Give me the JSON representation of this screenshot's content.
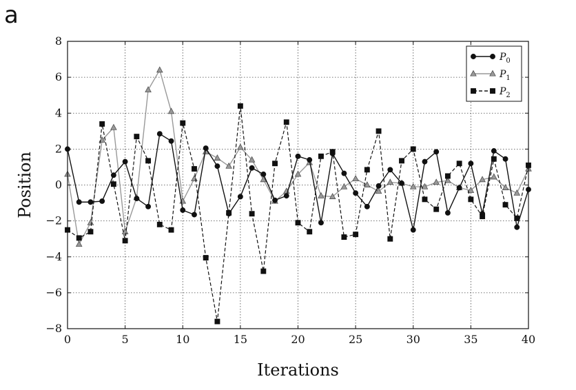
{
  "panel_label": "a",
  "chart_data": {
    "type": "line",
    "xlabel": "Iterations",
    "ylabel": "Position",
    "xlim": [
      0,
      40
    ],
    "ylim": [
      -8,
      8
    ],
    "xticks": [
      0,
      5,
      10,
      15,
      20,
      25,
      30,
      35,
      40
    ],
    "yticks": [
      -8,
      -6,
      -4,
      -2,
      0,
      2,
      4,
      6,
      8
    ],
    "ytick_labels": [
      "−8",
      "−6",
      "−4",
      "−2",
      "0",
      "2",
      "4",
      "6",
      "8"
    ],
    "grid": true,
    "legend_position": "top-right",
    "x": [
      0,
      1,
      2,
      3,
      4,
      5,
      6,
      7,
      8,
      9,
      10,
      11,
      12,
      13,
      14,
      15,
      16,
      17,
      18,
      19,
      20,
      21,
      22,
      23,
      24,
      25,
      26,
      27,
      28,
      29,
      30,
      31,
      32,
      33,
      34,
      35,
      36,
      37,
      38,
      39,
      40
    ],
    "series": [
      {
        "name": "P0",
        "name_base": "P",
        "name_sub": "0",
        "style": "solid",
        "marker": "circle",
        "color": "#111111",
        "values": [
          2.0,
          -0.95,
          -0.95,
          -0.9,
          0.55,
          1.3,
          -0.75,
          -1.2,
          2.85,
          2.45,
          -1.4,
          -1.65,
          2.05,
          1.05,
          -1.6,
          -0.65,
          0.95,
          0.6,
          -0.85,
          -0.6,
          1.6,
          1.4,
          -2.1,
          1.75,
          0.65,
          -0.45,
          -1.2,
          -0.05,
          0.85,
          0.1,
          -2.5,
          1.3,
          1.85,
          -1.55,
          -0.15,
          1.2,
          -1.6,
          1.9,
          1.45,
          -2.35,
          -0.25
        ]
      },
      {
        "name": "P1",
        "name_base": "P",
        "name_sub": "1",
        "style": "solid",
        "marker": "triangle",
        "color": "#999999",
        "values": [
          0.6,
          -3.3,
          -2.1,
          2.5,
          3.2,
          -2.6,
          -0.7,
          5.3,
          6.4,
          4.1,
          -0.9,
          0.35,
          1.85,
          1.5,
          1.05,
          2.1,
          1.4,
          0.3,
          -0.9,
          -0.35,
          0.6,
          1.25,
          -0.6,
          -0.65,
          -0.1,
          0.35,
          0.0,
          -0.35,
          0.15,
          0.1,
          -0.1,
          -0.1,
          0.15,
          0.25,
          -0.15,
          -0.3,
          0.3,
          0.45,
          -0.15,
          -0.45,
          0.9
        ]
      },
      {
        "name": "P2",
        "name_base": "P",
        "name_sub": "2",
        "style": "dashed",
        "marker": "square",
        "color": "#111111",
        "values": [
          -2.5,
          -2.95,
          -2.6,
          3.4,
          0.05,
          -3.1,
          2.7,
          1.35,
          -2.2,
          -2.5,
          3.45,
          0.9,
          -4.05,
          -7.6,
          -1.55,
          4.4,
          -1.6,
          -4.8,
          1.2,
          3.5,
          -2.1,
          -2.6,
          1.6,
          1.85,
          -2.9,
          -2.75,
          0.85,
          3.0,
          -3.0,
          1.35,
          2.0,
          -0.8,
          -1.35,
          0.5,
          1.2,
          -0.8,
          -1.75,
          1.45,
          -1.1,
          -1.85,
          1.1
        ]
      }
    ]
  }
}
